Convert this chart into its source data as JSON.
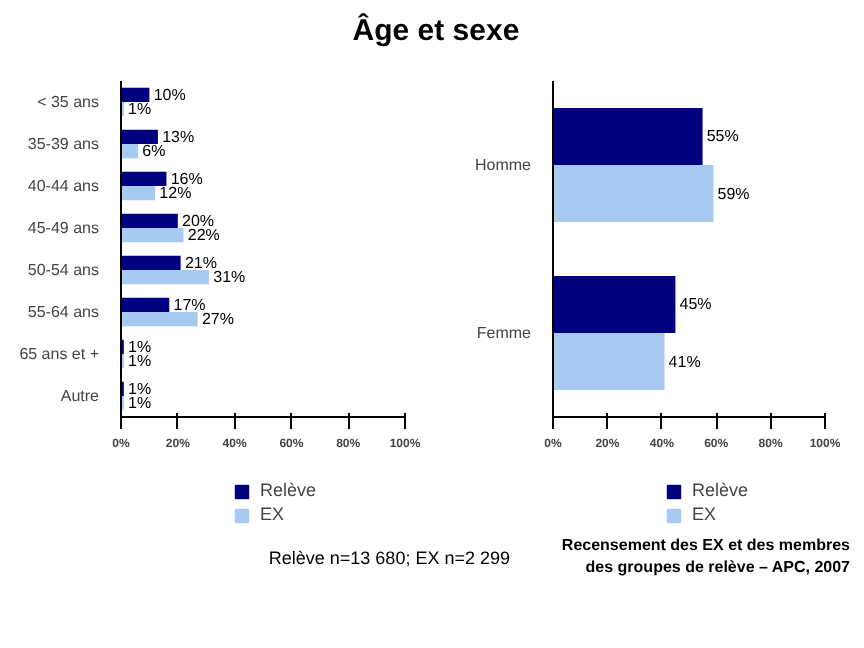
{
  "chart_data": [
    {
      "type": "bar",
      "orientation": "horizontal",
      "title": "Âge et sexe",
      "categories": [
        "< 35 ans",
        "35-39 ans",
        "40-44 ans",
        "45-49 ans",
        "50-54 ans",
        "55-64 ans",
        "65 ans et +",
        "Autre"
      ],
      "series": [
        {
          "name": "Relève",
          "color": "#000080",
          "values": [
            10,
            13,
            16,
            20,
            21,
            17,
            1,
            1
          ],
          "value_labels": [
            "10%",
            "13%",
            "16%",
            "20%",
            "21%",
            "17%",
            "1%",
            "1%"
          ]
        },
        {
          "name": "EX",
          "color": "#a6caf0",
          "values": [
            1,
            6,
            12,
            22,
            31,
            27,
            1,
            1
          ],
          "value_labels": [
            "1%",
            "6%",
            "12%",
            "22%",
            "31%",
            "27%",
            "1%",
            "1%"
          ]
        }
      ],
      "xlim": [
        0,
        100
      ],
      "xticks": [
        {
          "value": 0,
          "label": "0%"
        },
        {
          "value": 20,
          "label": "20%"
        },
        {
          "value": 40,
          "label": "40%"
        },
        {
          "value": 60,
          "label": "60%"
        },
        {
          "value": 80,
          "label": "80%"
        },
        {
          "value": 100,
          "label": "100%"
        }
      ],
      "grid": false,
      "legend": "bottom"
    },
    {
      "type": "bar",
      "orientation": "horizontal",
      "categories": [
        "Homme",
        "Femme"
      ],
      "series": [
        {
          "name": "Relève",
          "color": "#000080",
          "values": [
            55,
            45
          ],
          "value_labels": [
            "55%",
            "45%"
          ]
        },
        {
          "name": "EX",
          "color": "#a6caf0",
          "values": [
            59,
            41
          ],
          "value_labels": [
            "59%",
            "41%"
          ]
        }
      ],
      "xlim": [
        0,
        100
      ],
      "xticks": [
        {
          "value": 0,
          "label": "0%"
        },
        {
          "value": 20,
          "label": "20%"
        },
        {
          "value": 40,
          "label": "40%"
        },
        {
          "value": 60,
          "label": "60%"
        },
        {
          "value": 80,
          "label": "80%"
        },
        {
          "value": 100,
          "label": "100%"
        }
      ],
      "grid": false,
      "legend": "bottom",
      "annotations": [
        "Relève n=13 680; EX n=2 299",
        "Recensement des EX et des membres des groupes de relève – APC, 2007"
      ]
    }
  ]
}
